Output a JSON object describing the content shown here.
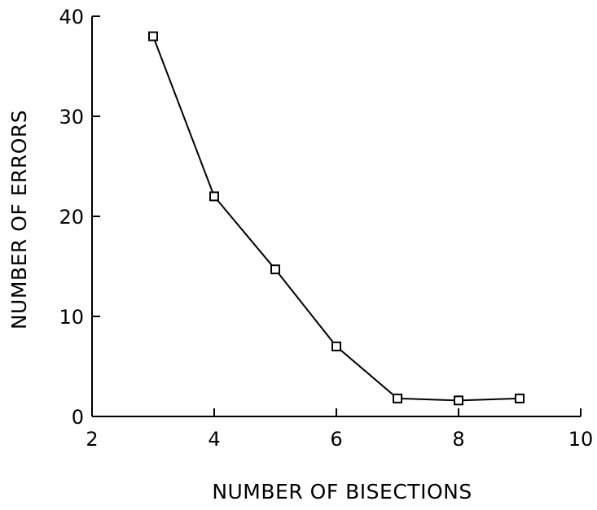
{
  "chart_data": {
    "type": "line",
    "title": "",
    "xlabel": "NUMBER OF BISECTIONS",
    "ylabel": "NUMBER OF ERRORS",
    "xlim": [
      2,
      10
    ],
    "ylim": [
      0,
      40
    ],
    "xticks": [
      2,
      4,
      6,
      8,
      10
    ],
    "yticks": [
      0,
      10,
      20,
      30,
      40
    ],
    "grid": false,
    "marker": "square",
    "line_color": "#000000",
    "x": [
      3,
      4,
      5,
      6,
      7,
      8,
      9
    ],
    "y": [
      38,
      22,
      14.7,
      7,
      1.8,
      1.6,
      1.8
    ]
  }
}
